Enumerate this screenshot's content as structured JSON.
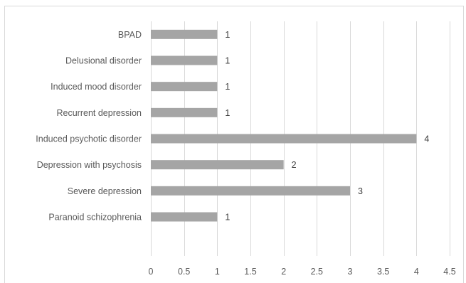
{
  "chart_data": {
    "type": "bar",
    "orientation": "horizontal",
    "title": "",
    "xlabel": "",
    "ylabel": "",
    "categories": [
      "BPAD",
      "Delusional disorder",
      "Induced mood disorder",
      "Recurrent depression",
      "Induced psychotic disorder",
      "Depression with psychosis",
      "Severe depression",
      "Paranoid schizophrenia"
    ],
    "values": [
      1,
      1,
      1,
      1,
      4,
      2,
      3,
      1
    ],
    "data_labels": [
      "1",
      "1",
      "1",
      "1",
      "4",
      "2",
      "3",
      "1"
    ],
    "xlim": [
      0,
      4.5
    ],
    "x_ticks": [
      "0",
      "0.5",
      "1",
      "1.5",
      "2",
      "2.5",
      "3",
      "3.5",
      "4",
      "4.5"
    ],
    "x_tick_values": [
      0,
      0.5,
      1,
      1.5,
      2,
      2.5,
      3,
      3.5,
      4,
      4.5
    ],
    "grid": "vertical",
    "legend": "none",
    "colors": {
      "bar": "#a5a5a5",
      "grid": "#d9d9d9",
      "text": "#595959"
    }
  }
}
